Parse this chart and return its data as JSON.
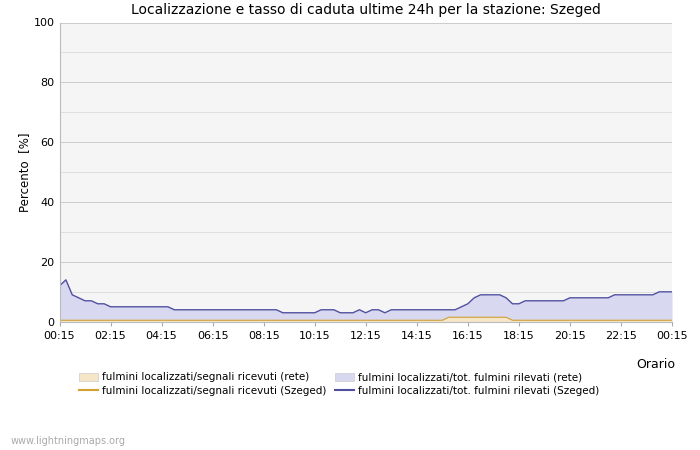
{
  "title": "Localizzazione e tasso di caduta ultime 24h per la stazione: Szeged",
  "ylabel": "Percento  [%]",
  "xlabel": "Orario",
  "ylim": [
    0,
    100
  ],
  "yticks": [
    0,
    20,
    40,
    60,
    80,
    100
  ],
  "yticks_minor": [
    10,
    30,
    50,
    70,
    90
  ],
  "x_labels": [
    "00:15",
    "02:15",
    "04:15",
    "06:15",
    "08:15",
    "10:15",
    "12:15",
    "14:15",
    "16:15",
    "18:15",
    "20:15",
    "22:15",
    "00:15"
  ],
  "bg_color": "#ffffff",
  "plot_bg_color": "#f5f5f5",
  "grid_color": "#cccccc",
  "watermark": "www.lightningmaps.org",
  "fill_rete_color": "#f5e6c8",
  "fill_szeged_color": "#d8d8f0",
  "line_rete_color": "#d4a030",
  "line_szeged_color": "#5050a0",
  "n_points": 97,
  "rete_fill_values": [
    0.5,
    0.5,
    0.5,
    0.5,
    0.5,
    0.5,
    0.5,
    0.5,
    0.5,
    0.5,
    0.5,
    0.5,
    0.5,
    0.5,
    0.5,
    0.5,
    0.5,
    0.5,
    0.5,
    0.5,
    0.5,
    0.5,
    0.5,
    0.5,
    0.5,
    0.5,
    0.5,
    0.5,
    0.5,
    0.5,
    0.5,
    0.5,
    0.5,
    0.5,
    0.5,
    0.5,
    0.5,
    0.5,
    0.5,
    0.5,
    0.5,
    0.5,
    0.5,
    0.5,
    0.5,
    0.5,
    0.5,
    0.5,
    0.5,
    0.5,
    0.5,
    0.5,
    0.5,
    0.5,
    0.5,
    0.5,
    0.5,
    0.5,
    0.5,
    0.5,
    0.5,
    1.5,
    1.5,
    1.5,
    1.5,
    1.5,
    1.5,
    1.5,
    1.5,
    1.5,
    1.5,
    0.5,
    0.5,
    0.5,
    0.5,
    0.5,
    0.5,
    0.5,
    0.5,
    0.5,
    0.5,
    0.5,
    0.5,
    0.5,
    0.5,
    0.5,
    0.5,
    0.5,
    0.5,
    0.5,
    0.5,
    0.5,
    0.5,
    0.5,
    0.5,
    0.5,
    0.5
  ],
  "szeged_fill_values": [
    12,
    14,
    9,
    8,
    7,
    7,
    6,
    6,
    5,
    5,
    5,
    5,
    5,
    5,
    5,
    5,
    5,
    5,
    4,
    4,
    4,
    4,
    4,
    4,
    4,
    4,
    4,
    4,
    4,
    4,
    4,
    4,
    4,
    4,
    4,
    3,
    3,
    3,
    3,
    3,
    3,
    4,
    4,
    4,
    3,
    3,
    3,
    4,
    3,
    4,
    4,
    3,
    4,
    4,
    4,
    4,
    4,
    4,
    4,
    4,
    4,
    4,
    4,
    5,
    6,
    8,
    9,
    9,
    9,
    9,
    8,
    6,
    6,
    7,
    7,
    7,
    7,
    7,
    7,
    7,
    8,
    8,
    8,
    8,
    8,
    8,
    8,
    9,
    9,
    9,
    9,
    9,
    9,
    9,
    10,
    10,
    10
  ],
  "legend_labels": [
    "fulmini localizzati/segnali ricevuti (rete)",
    "fulmini localizzati/segnali ricevuti (Szeged)",
    "fulmini localizzati/tot. fulmini rilevati (rete)",
    "fulmini localizzati/tot. fulmini rilevati (Szeged)"
  ]
}
